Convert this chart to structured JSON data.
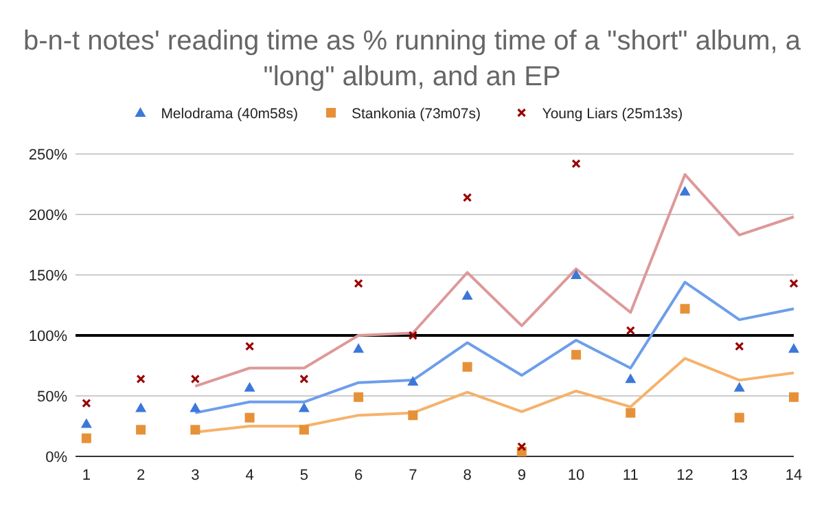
{
  "chart_data": {
    "type": "scatter",
    "title": "b-n-t notes' reading time as % running time of a \"short\" album, a \"long\" album, and an EP",
    "x": [
      1,
      2,
      3,
      4,
      5,
      6,
      7,
      8,
      9,
      10,
      11,
      12,
      13,
      14
    ],
    "xlim": [
      0.8,
      14
    ],
    "xticks": [
      1,
      2,
      3,
      4,
      5,
      6,
      7,
      8,
      9,
      10,
      11,
      12,
      13,
      14
    ],
    "series": [
      {
        "name": "Melodrama (40m58s)",
        "color": "#3c78d8",
        "marker": "triangle",
        "values": [
          27,
          40,
          40,
          57,
          40,
          89,
          62,
          133,
          null,
          150,
          64,
          219,
          57,
          89
        ]
      },
      {
        "name": "Stankonia (73m07s)",
        "color": "#e69138",
        "marker": "square",
        "values": [
          15,
          22,
          22,
          32,
          22,
          49,
          34,
          74,
          4,
          84,
          36,
          122,
          32,
          49
        ]
      },
      {
        "name": "Young Liars (25m13s)",
        "color": "#990000",
        "marker": "cross",
        "values": [
          44,
          64,
          64,
          91,
          64,
          143,
          100,
          214,
          8,
          242,
          104,
          null,
          91,
          143
        ]
      },
      {
        "type": "line",
        "color": "#dd9999",
        "values": [
          null,
          null,
          58,
          73,
          73,
          100,
          102,
          152,
          108,
          155,
          119,
          233,
          183,
          198
        ]
      },
      {
        "type": "line",
        "color": "#6d9eeb",
        "values": [
          null,
          null,
          36,
          45,
          45,
          61,
          63,
          94,
          67,
          96,
          73,
          144,
          113,
          122
        ]
      },
      {
        "type": "line",
        "color": "#f6b26b",
        "values": [
          null,
          null,
          20,
          25,
          25,
          34,
          36,
          53,
          37,
          54,
          41,
          81,
          63,
          69
        ]
      }
    ],
    "ylim": [
      0,
      250
    ],
    "yticks": [
      {
        "value": 0,
        "label": "0%"
      },
      {
        "value": 50,
        "label": "50%"
      },
      {
        "value": 100,
        "label": "100%"
      },
      {
        "value": 150,
        "label": "150%"
      },
      {
        "value": 200,
        "label": "200%"
      },
      {
        "value": 250,
        "label": "250%"
      }
    ],
    "ref_lines": [
      {
        "axis": "y",
        "value": 100,
        "color": "#000000"
      }
    ],
    "grid": "y",
    "legend": "top"
  }
}
